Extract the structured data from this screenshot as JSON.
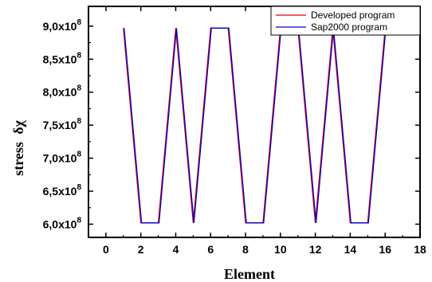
{
  "chart_data": {
    "type": "line",
    "xlabel": "Element",
    "ylabel": "stress",
    "ylabel_symbol": "δχ",
    "xlim": [
      -1,
      18
    ],
    "ylim": [
      580000000,
      930000000
    ],
    "x_ticks": [
      0,
      2,
      4,
      6,
      8,
      10,
      12,
      14,
      16,
      18
    ],
    "x_tick_labels": [
      "0",
      "2",
      "4",
      "6",
      "8",
      "10",
      "12",
      "14",
      "16",
      "18"
    ],
    "y_ticks": [
      600000000,
      650000000,
      700000000,
      750000000,
      800000000,
      850000000,
      900000000
    ],
    "y_tick_mantissas": [
      "6,0x10",
      "6,5x10",
      "7,0x10",
      "7,5x10",
      "8,0x10",
      "8,5x10",
      "9,0x10"
    ],
    "y_tick_exponent": "8",
    "grid": false,
    "legend_position": "top-right",
    "series": [
      {
        "name": "Developed program",
        "color": "#dd0000",
        "x": [
          1,
          2,
          3,
          4,
          5,
          6,
          7,
          8,
          9,
          10,
          11,
          12,
          13,
          14,
          15,
          16
        ],
        "values": [
          897000000,
          602000000,
          602000000,
          897000000,
          602000000,
          897000000,
          897000000,
          602000000,
          602000000,
          897000000,
          897000000,
          602000000,
          897000000,
          602000000,
          602000000,
          897000000
        ]
      },
      {
        "name": "Sap2000 program",
        "color": "#0000cc",
        "x": [
          1,
          2,
          3,
          4,
          5,
          6,
          7,
          8,
          9,
          10,
          11,
          12,
          13,
          14,
          15,
          16
        ],
        "values": [
          897000000,
          602000000,
          602000000,
          897000000,
          602000000,
          897000000,
          897000000,
          602000000,
          602000000,
          897000000,
          897000000,
          602000000,
          897000000,
          602000000,
          602000000,
          897000000
        ]
      }
    ]
  }
}
